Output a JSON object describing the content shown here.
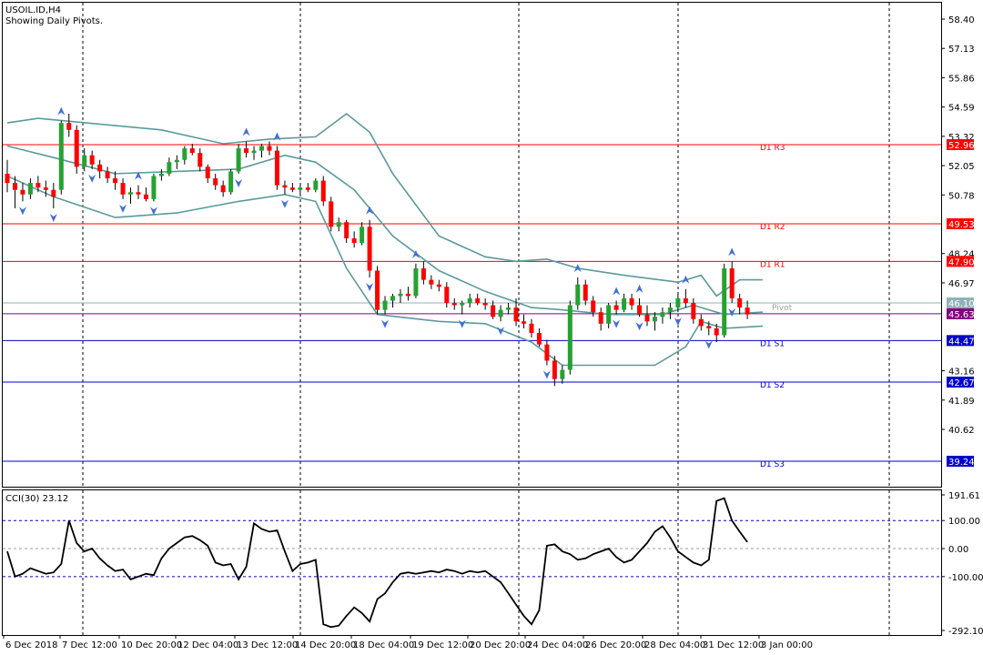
{
  "header": {
    "symbol_line": "USOIL.ID,H4",
    "subtitle": "Showing Daily Pivots."
  },
  "colors": {
    "bull": "#26a131",
    "bear": "#ff0000",
    "band": "#5b9a9b",
    "resistance": "#ff0000",
    "support": "#0000cd",
    "pivot": "#9e9e9e",
    "fractal": "#3f6fd6",
    "last_price_tag": "#8fb3b8",
    "current_tag": "#800080"
  },
  "chart_data": [
    {
      "type": "candlestick",
      "symbol": "USOIL.ID",
      "timeframe": "H4",
      "y_axis_ticks": [
        "58.40",
        "57.13",
        "55.86",
        "54.59",
        "53.32",
        "52.05",
        "50.78",
        "48.24",
        "46.97",
        "43.16",
        "41.89",
        "40.62"
      ],
      "ylim": [
        38.6,
        59.0
      ],
      "x_tick_labels": [
        "6 Dec 2018",
        "7 Dec 12:00",
        "10 Dec 20:00",
        "12 Dec 04:00",
        "13 Dec 12:00",
        "14 Dec 20:00",
        "18 Dec 04:00",
        "19 Dec 12:00",
        "20 Dec 20:00",
        "24 Dec 04:00",
        "26 Dec 20:00",
        "28 Dec 04:00",
        "31 Dec 12:00",
        "3 Jan 00:00"
      ],
      "candles": [
        [
          51.7,
          52.3,
          50.9,
          51.3
        ],
        [
          51.3,
          51.6,
          50.2,
          51.0
        ],
        [
          51.0,
          51.3,
          50.5,
          50.8
        ],
        [
          50.8,
          51.5,
          50.6,
          51.3
        ],
        [
          51.3,
          51.6,
          50.9,
          51.1
        ],
        [
          51.1,
          51.4,
          50.7,
          51.0
        ],
        [
          51.0,
          51.3,
          50.2,
          50.7
        ],
        [
          51.0,
          54.0,
          50.8,
          53.9
        ],
        [
          53.9,
          54.3,
          53.3,
          53.6
        ],
        [
          53.6,
          53.8,
          51.7,
          52.0
        ],
        [
          52.0,
          52.8,
          51.8,
          52.5
        ],
        [
          52.5,
          52.7,
          51.9,
          52.1
        ],
        [
          52.1,
          52.3,
          51.5,
          51.8
        ],
        [
          51.8,
          52.0,
          51.3,
          51.5
        ],
        [
          51.5,
          51.8,
          51.0,
          51.3
        ],
        [
          51.3,
          51.5,
          50.6,
          50.8
        ],
        [
          50.8,
          51.1,
          50.4,
          50.9
        ],
        [
          50.9,
          51.2,
          50.6,
          50.8
        ],
        [
          50.8,
          51.1,
          50.5,
          50.6
        ],
        [
          50.6,
          51.7,
          50.5,
          51.6
        ],
        [
          51.6,
          51.9,
          51.4,
          51.7
        ],
        [
          51.7,
          52.4,
          51.6,
          52.2
        ],
        [
          52.2,
          52.5,
          51.9,
          52.3
        ],
        [
          52.3,
          52.9,
          52.1,
          52.8
        ],
        [
          52.8,
          53.0,
          52.5,
          52.6
        ],
        [
          52.6,
          52.8,
          51.8,
          52.0
        ],
        [
          52.0,
          52.1,
          51.3,
          51.5
        ],
        [
          51.5,
          51.7,
          51.0,
          51.2
        ],
        [
          51.2,
          51.4,
          50.7,
          50.9
        ],
        [
          50.9,
          51.9,
          50.8,
          51.8
        ],
        [
          51.8,
          53.0,
          51.7,
          52.8
        ],
        [
          52.8,
          53.1,
          52.4,
          52.6
        ],
        [
          52.6,
          52.9,
          52.3,
          52.7
        ],
        [
          52.7,
          53.0,
          52.4,
          52.9
        ],
        [
          52.9,
          53.1,
          52.5,
          52.7
        ],
        [
          52.7,
          52.9,
          51.0,
          51.2
        ],
        [
          51.2,
          51.4,
          50.8,
          51.1
        ],
        [
          51.1,
          51.3,
          50.9,
          51.0
        ],
        [
          51.0,
          51.2,
          50.8,
          51.1
        ],
        [
          51.1,
          51.3,
          50.9,
          51.0
        ],
        [
          51.0,
          51.5,
          50.9,
          51.4
        ],
        [
          51.4,
          51.6,
          50.3,
          50.5
        ],
        [
          50.5,
          50.7,
          49.2,
          49.4
        ],
        [
          49.4,
          49.8,
          49.2,
          49.6
        ],
        [
          49.6,
          49.7,
          48.7,
          48.9
        ],
        [
          48.9,
          49.2,
          48.5,
          48.7
        ],
        [
          48.7,
          49.6,
          48.6,
          49.4
        ],
        [
          49.4,
          49.7,
          47.2,
          47.5
        ],
        [
          47.5,
          47.7,
          45.6,
          45.8
        ],
        [
          45.8,
          46.4,
          45.6,
          46.2
        ],
        [
          46.2,
          46.5,
          45.9,
          46.4
        ],
        [
          46.4,
          46.7,
          46.1,
          46.5
        ],
        [
          46.5,
          46.8,
          46.2,
          46.4
        ],
        [
          46.4,
          47.8,
          46.3,
          47.6
        ],
        [
          47.6,
          47.9,
          46.9,
          47.1
        ],
        [
          47.1,
          47.3,
          46.7,
          46.9
        ],
        [
          46.9,
          47.1,
          46.6,
          46.8
        ],
        [
          46.8,
          47.0,
          45.9,
          46.1
        ],
        [
          46.1,
          46.3,
          45.8,
          46.0
        ],
        [
          46.0,
          46.2,
          45.6,
          46.1
        ],
        [
          46.1,
          46.5,
          45.9,
          46.3
        ],
        [
          46.3,
          46.5,
          46.0,
          46.1
        ],
        [
          46.1,
          46.3,
          45.8,
          46.0
        ],
        [
          46.0,
          46.2,
          45.4,
          45.5
        ],
        [
          45.5,
          46.0,
          45.3,
          45.8
        ],
        [
          45.8,
          46.1,
          45.6,
          45.9
        ],
        [
          45.9,
          46.3,
          45.1,
          45.3
        ],
        [
          45.3,
          45.6,
          45.0,
          45.2
        ],
        [
          45.2,
          45.4,
          44.6,
          44.8
        ],
        [
          44.8,
          45.0,
          44.2,
          44.3
        ],
        [
          44.3,
          44.5,
          43.4,
          43.6
        ],
        [
          43.6,
          43.8,
          42.5,
          42.8
        ],
        [
          42.8,
          43.4,
          42.6,
          43.2
        ],
        [
          43.2,
          46.2,
          43.0,
          46.0
        ],
        [
          46.0,
          47.2,
          45.8,
          46.9
        ],
        [
          46.9,
          47.1,
          46.0,
          46.2
        ],
        [
          46.2,
          46.4,
          45.5,
          45.7
        ],
        [
          45.7,
          45.9,
          44.9,
          45.2
        ],
        [
          45.2,
          46.1,
          45.0,
          46.0
        ],
        [
          46.0,
          46.2,
          45.6,
          45.8
        ],
        [
          45.8,
          46.5,
          45.7,
          46.3
        ],
        [
          46.3,
          46.5,
          45.8,
          46.0
        ],
        [
          46.0,
          46.3,
          45.5,
          45.6
        ],
        [
          45.6,
          46.0,
          45.1,
          45.3
        ],
        [
          45.3,
          45.7,
          44.9,
          45.5
        ],
        [
          45.5,
          45.9,
          45.2,
          45.7
        ],
        [
          45.7,
          46.1,
          45.4,
          45.9
        ],
        [
          45.9,
          46.5,
          45.7,
          46.3
        ],
        [
          46.3,
          46.7,
          45.9,
          46.1
        ],
        [
          46.1,
          46.3,
          45.2,
          45.4
        ],
        [
          45.4,
          45.6,
          44.9,
          45.1
        ],
        [
          45.1,
          45.3,
          44.7,
          45.0
        ],
        [
          45.0,
          45.2,
          44.4,
          44.7
        ],
        [
          44.7,
          47.8,
          44.6,
          47.6
        ],
        [
          47.6,
          47.9,
          46.1,
          46.3
        ],
        [
          46.3,
          46.5,
          45.6,
          45.9
        ],
        [
          45.9,
          46.2,
          45.4,
          45.6
        ]
      ],
      "bollinger_bands": {
        "upper": [
          [
            0,
            53.9
          ],
          [
            4,
            54.1
          ],
          [
            20,
            53.6
          ],
          [
            28,
            53.0
          ],
          [
            34,
            53.2
          ],
          [
            40,
            53.3
          ],
          [
            44,
            54.3
          ],
          [
            47,
            53.5
          ],
          [
            50,
            51.7
          ],
          [
            56,
            49.0
          ],
          [
            62,
            48.1
          ],
          [
            66,
            47.9
          ],
          [
            70,
            48.0
          ],
          [
            74,
            47.6
          ],
          [
            80,
            47.3
          ],
          [
            87,
            47.0
          ],
          [
            90,
            47.3
          ],
          [
            92,
            46.4
          ],
          [
            95,
            47.1
          ],
          [
            98,
            47.1
          ]
        ],
        "middle": [
          [
            0,
            52.9
          ],
          [
            6,
            52.4
          ],
          [
            14,
            51.7
          ],
          [
            22,
            51.8
          ],
          [
            30,
            51.9
          ],
          [
            36,
            52.5
          ],
          [
            40,
            52.2
          ],
          [
            45,
            51.0
          ],
          [
            50,
            49.0
          ],
          [
            56,
            47.5
          ],
          [
            62,
            46.6
          ],
          [
            68,
            45.9
          ],
          [
            72,
            45.8
          ],
          [
            78,
            45.6
          ],
          [
            85,
            45.6
          ],
          [
            89,
            46.0
          ],
          [
            93,
            45.6
          ],
          [
            98,
            45.7
          ]
        ],
        "lower": [
          [
            0,
            51.6
          ],
          [
            6,
            50.7
          ],
          [
            14,
            49.8
          ],
          [
            22,
            50.0
          ],
          [
            30,
            50.5
          ],
          [
            36,
            50.8
          ],
          [
            40,
            50.5
          ],
          [
            44,
            47.6
          ],
          [
            48,
            45.6
          ],
          [
            56,
            45.3
          ],
          [
            62,
            45.2
          ],
          [
            68,
            44.4
          ],
          [
            72,
            43.4
          ],
          [
            78,
            43.4
          ],
          [
            84,
            43.4
          ],
          [
            88,
            44.2
          ],
          [
            90,
            45.3
          ],
          [
            93,
            45.0
          ],
          [
            98,
            45.1
          ]
        ]
      },
      "pivot_levels": [
        {
          "name": "D1 R3",
          "value": 52.96,
          "tag": "52.96",
          "kind": "resistance"
        },
        {
          "name": "D1 R2",
          "value": 49.53,
          "tag": "49.53",
          "kind": "resistance"
        },
        {
          "name": "D1 R1",
          "value": 47.9,
          "tag": "47.90",
          "kind": "resistance"
        },
        {
          "name": "Pivot",
          "value": 45.63,
          "tag": "45.63",
          "kind": "pivot"
        },
        {
          "name": "D1 S1",
          "value": 44.47,
          "tag": "44.47",
          "kind": "support"
        },
        {
          "name": "D1 S2",
          "value": 42.67,
          "tag": "42.67",
          "kind": "support"
        },
        {
          "name": "D1 S3",
          "value": 39.24,
          "tag": "39.24",
          "kind": "support"
        }
      ],
      "last_price": {
        "value": 46.1,
        "tag": "46.10"
      },
      "fractals_up": [
        7,
        17,
        31,
        35,
        47,
        53,
        74,
        79,
        82,
        88,
        94
      ],
      "fractals_down": [
        2,
        6,
        11,
        15,
        19,
        30,
        36,
        47,
        49,
        59,
        64,
        70,
        79,
        82,
        87,
        91,
        94
      ]
    },
    {
      "type": "line",
      "name": "CCI(30) 23.12",
      "y_axis_ticks": [
        "191.61",
        "100.00",
        "0.00",
        "-100.00",
        "-292.10"
      ],
      "ylim": [
        -292.1,
        191.61
      ],
      "levels": [
        100,
        0,
        -100
      ],
      "values": [
        -10,
        -100,
        -90,
        -70,
        -80,
        -90,
        -85,
        -55,
        100,
        20,
        -10,
        0,
        -35,
        -60,
        -80,
        -75,
        -110,
        -100,
        -90,
        -95,
        -35,
        0,
        20,
        40,
        45,
        30,
        10,
        -50,
        -60,
        -55,
        -110,
        -65,
        90,
        70,
        60,
        65,
        -10,
        -80,
        -55,
        -50,
        -40,
        -270,
        -280,
        -275,
        -240,
        -210,
        -230,
        -260,
        -180,
        -160,
        -120,
        -90,
        -85,
        -90,
        -85,
        -80,
        -85,
        -75,
        -80,
        -90,
        -80,
        -85,
        -80,
        -100,
        -120,
        -160,
        -200,
        -240,
        -270,
        -220,
        10,
        15,
        -10,
        -20,
        -40,
        -35,
        -20,
        -10,
        0,
        -30,
        -50,
        -40,
        -10,
        20,
        60,
        80,
        40,
        -10,
        -30,
        -50,
        -60,
        -40,
        170,
        180,
        100,
        60,
        23
      ]
    }
  ]
}
